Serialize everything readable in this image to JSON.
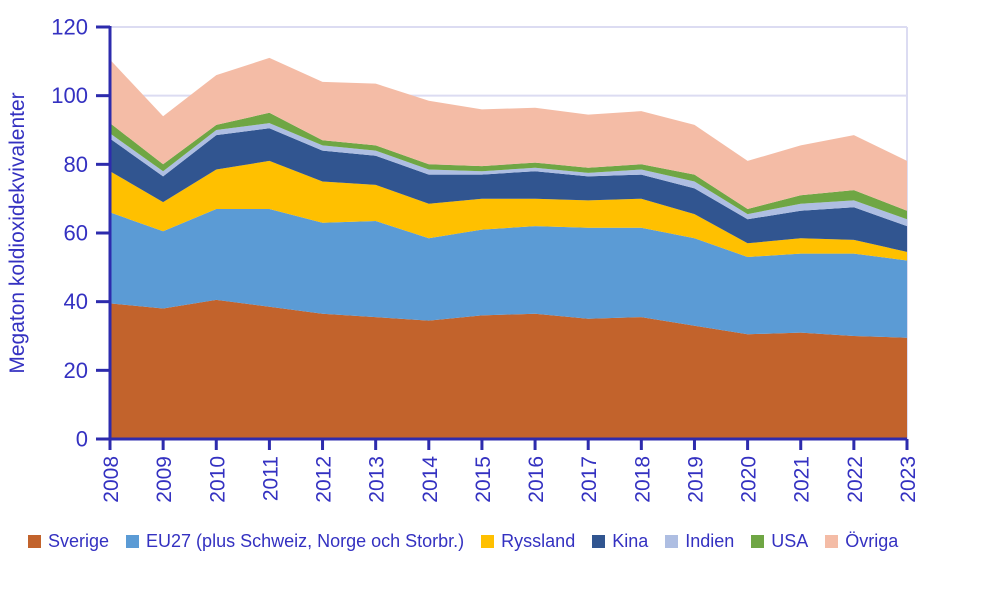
{
  "style": {
    "background": "#FFFFFF",
    "text_color": "#3431C1",
    "axis_color": "#2D2BAD",
    "grid_color": "#DCDCF2"
  },
  "chart_data": {
    "type": "area",
    "stacked": true,
    "title": "",
    "xlabel": "",
    "ylabel": "Megaton koldioxidekvivalenter",
    "ylim": [
      0,
      120
    ],
    "y_ticks": [
      0,
      20,
      40,
      60,
      80,
      100,
      120
    ],
    "grid": true,
    "legend_position": "bottom",
    "categories": [
      "2008",
      "2009",
      "2010",
      "2011",
      "2012",
      "2013",
      "2014",
      "2015",
      "2016",
      "2017",
      "2018",
      "2019",
      "2020",
      "2021",
      "2022",
      "2023"
    ],
    "series": [
      {
        "name": "Sverige",
        "color": "#C2632C",
        "values": [
          39.5,
          38,
          40.5,
          38.5,
          36.5,
          35.5,
          34.5,
          36,
          36.5,
          35,
          35.5,
          33,
          30.5,
          31,
          30,
          29.5
        ]
      },
      {
        "name": "EU27 (plus Schweiz, Norge och Storbr.)",
        "color": "#5B9BD5",
        "values": [
          26.5,
          22.5,
          26.5,
          28.5,
          26.5,
          28,
          24,
          25,
          25.5,
          26.5,
          26,
          25.5,
          22.5,
          23,
          24,
          22.5
        ]
      },
      {
        "name": "Ryssland",
        "color": "#FFC000",
        "values": [
          12,
          8.5,
          11.5,
          14,
          12,
          10.5,
          10,
          9,
          8,
          8,
          8.5,
          7,
          4,
          4.5,
          4,
          2.5
        ]
      },
      {
        "name": "Kina",
        "color": "#315590",
        "values": [
          9.5,
          7.5,
          10,
          9.5,
          9,
          8.5,
          8.5,
          7,
          8,
          7,
          7,
          7.5,
          7,
          8,
          9.5,
          7.5
        ]
      },
      {
        "name": "Indien",
        "color": "#AEBEE2",
        "values": [
          1.5,
          1.5,
          1.5,
          1.5,
          1.5,
          1.5,
          1.5,
          1,
          1,
          1,
          1.5,
          2,
          1.5,
          2,
          2,
          2
        ]
      },
      {
        "name": "USA",
        "color": "#6FA644",
        "values": [
          3,
          2,
          1.5,
          3,
          1.5,
          1.5,
          1.5,
          1.5,
          1.5,
          1.5,
          1.5,
          2,
          1.5,
          2.5,
          3,
          2.5
        ]
      },
      {
        "name": "Övriga",
        "color": "#F4BCA6",
        "values": [
          18.5,
          14,
          14.5,
          16,
          17,
          18,
          18.5,
          16.5,
          16,
          15.5,
          15.5,
          14.5,
          14,
          14.5,
          16,
          14.5
        ]
      }
    ]
  }
}
